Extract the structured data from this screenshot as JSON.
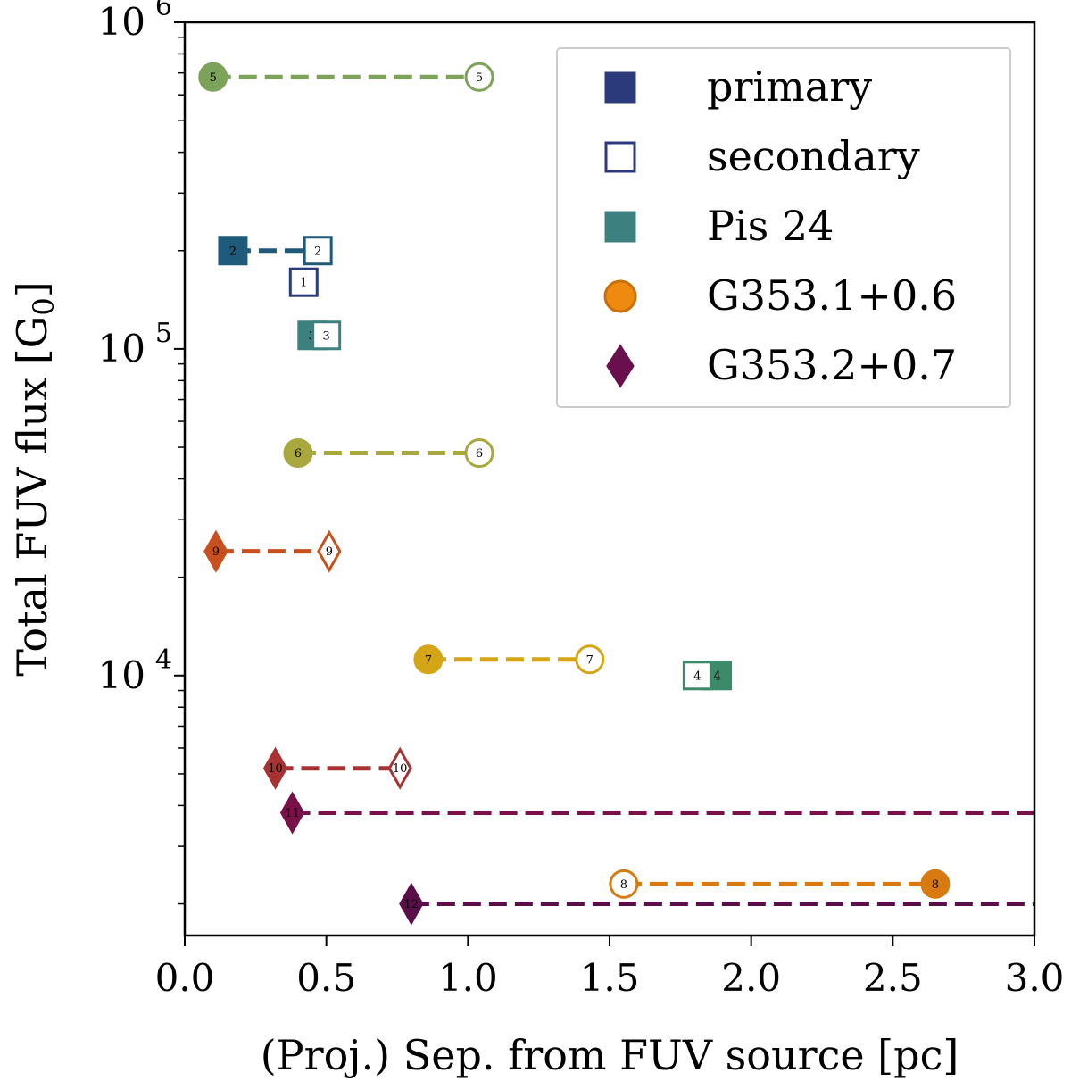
{
  "chart_data": {
    "type": "scatter",
    "xlabel": "(Proj.) Sep. from FUV source [pc]",
    "ylabel": "Total FUV flux [G",
    "ylabel_sub": "0",
    "ylabel_close": "]",
    "xlim": [
      0,
      3.0
    ],
    "ylim": [
      1600,
      1000000
    ],
    "yscale": "log",
    "xticks": [
      {
        "v": 0.0,
        "label": "0.0"
      },
      {
        "v": 0.5,
        "label": "0.5"
      },
      {
        "v": 1.0,
        "label": "1.0"
      },
      {
        "v": 1.5,
        "label": "1.5"
      },
      {
        "v": 2.0,
        "label": "2.0"
      },
      {
        "v": 2.5,
        "label": "2.5"
      },
      {
        "v": 3.0,
        "label": "3.0"
      }
    ],
    "yticks_major": [
      {
        "v": 10000,
        "base": "10",
        "exp": "4"
      },
      {
        "v": 100000,
        "base": "10",
        "exp": "5"
      },
      {
        "v": 1000000,
        "base": "10",
        "exp": "6"
      }
    ],
    "legend": {
      "position": "top-right",
      "entries": [
        {
          "label": "primary",
          "marker": "square",
          "fill": "#2b3a7a",
          "edge": "#2b3a7a",
          "filled": true
        },
        {
          "label": "secondary",
          "marker": "square",
          "fill": "#ffffff",
          "edge": "#2b3a7a",
          "filled": false
        },
        {
          "label": "Pis 24",
          "marker": "square",
          "fill": "#3d8080",
          "edge": "#3d8080",
          "filled": true
        },
        {
          "label": "G353.1+0.6",
          "marker": "circle",
          "fill": "#ef8a10",
          "edge": "#c9700a",
          "filled": true
        },
        {
          "label": "G353.2+0.7",
          "marker": "diamond",
          "fill": "#6a0f4d",
          "edge": "#6a0f4d",
          "filled": true
        }
      ]
    },
    "lines": [
      {
        "id": "5",
        "x1": 0.1,
        "x2": 1.04,
        "y": 680000,
        "color": "#7da35a"
      },
      {
        "id": "2",
        "x1": 0.17,
        "x2": 0.47,
        "y": 200000,
        "color": "#1f5a7a"
      },
      {
        "id": "6",
        "x1": 0.4,
        "x2": 1.04,
        "y": 48000,
        "color": "#a8a83e"
      },
      {
        "id": "9",
        "x1": 0.11,
        "x2": 0.51,
        "y": 24000,
        "color": "#c8501e"
      },
      {
        "id": "7",
        "x1": 0.86,
        "x2": 1.43,
        "y": 11200,
        "color": "#d4a515"
      },
      {
        "id": "10",
        "x1": 0.32,
        "x2": 0.76,
        "y": 5200,
        "color": "#a83232"
      },
      {
        "id": "11",
        "x1": 0.38,
        "x2": 3.0,
        "y": 3800,
        "color": "#7a1048"
      },
      {
        "id": "8",
        "x1": 1.55,
        "x2": 2.65,
        "y": 2300,
        "color": "#d87a10"
      },
      {
        "id": "12",
        "x1": 0.8,
        "x2": 3.0,
        "y": 2000,
        "color": "#5c0e4a"
      }
    ],
    "points": [
      {
        "id": "5",
        "x": 0.1,
        "y": 680000,
        "marker": "circle",
        "filled": true,
        "color": "#7da35a"
      },
      {
        "id": "5",
        "x": 1.04,
        "y": 680000,
        "marker": "circle",
        "filled": false,
        "color": "#7da35a"
      },
      {
        "id": "2",
        "x": 0.17,
        "y": 200000,
        "marker": "square",
        "filled": true,
        "color": "#1f5a7a"
      },
      {
        "id": "2",
        "x": 0.47,
        "y": 200000,
        "marker": "square",
        "filled": false,
        "color": "#1f5a7a"
      },
      {
        "id": "1",
        "x": 0.42,
        "y": 160000,
        "marker": "square",
        "filled": false,
        "color": "#2b3a7a"
      },
      {
        "id": "3",
        "x": 0.45,
        "y": 110000,
        "marker": "square",
        "filled": true,
        "color": "#3d8080"
      },
      {
        "id": "3",
        "x": 0.5,
        "y": 110000,
        "marker": "square",
        "filled": false,
        "color": "#3d8080"
      },
      {
        "id": "6",
        "x": 0.4,
        "y": 48000,
        "marker": "circle",
        "filled": true,
        "color": "#a8a83e"
      },
      {
        "id": "6",
        "x": 1.04,
        "y": 48000,
        "marker": "circle",
        "filled": false,
        "color": "#a8a83e"
      },
      {
        "id": "9",
        "x": 0.11,
        "y": 24000,
        "marker": "diamond",
        "filled": true,
        "color": "#c8501e"
      },
      {
        "id": "9",
        "x": 0.51,
        "y": 24000,
        "marker": "diamond",
        "filled": false,
        "color": "#c8501e"
      },
      {
        "id": "7",
        "x": 0.86,
        "y": 11200,
        "marker": "circle",
        "filled": true,
        "color": "#d4a515"
      },
      {
        "id": "7",
        "x": 1.43,
        "y": 11200,
        "marker": "circle",
        "filled": false,
        "color": "#d4a515"
      },
      {
        "id": "4",
        "x": 1.88,
        "y": 10000,
        "marker": "square",
        "filled": true,
        "color": "#3d8a6a"
      },
      {
        "id": "4",
        "x": 1.81,
        "y": 10000,
        "marker": "square",
        "filled": false,
        "color": "#3d8a6a"
      },
      {
        "id": "10",
        "x": 0.32,
        "y": 5200,
        "marker": "diamond",
        "filled": true,
        "color": "#a83232"
      },
      {
        "id": "10",
        "x": 0.76,
        "y": 5200,
        "marker": "diamond",
        "filled": false,
        "color": "#a83232"
      },
      {
        "id": "11",
        "x": 0.38,
        "y": 3800,
        "marker": "diamond",
        "filled": true,
        "color": "#7a1048"
      },
      {
        "id": "8",
        "x": 1.55,
        "y": 2300,
        "marker": "circle",
        "filled": false,
        "color": "#d87a10"
      },
      {
        "id": "8",
        "x": 2.65,
        "y": 2300,
        "marker": "circle",
        "filled": true,
        "color": "#d87a10"
      },
      {
        "id": "12",
        "x": 0.8,
        "y": 2000,
        "marker": "diamond",
        "filled": true,
        "color": "#5c0e4a"
      }
    ]
  }
}
